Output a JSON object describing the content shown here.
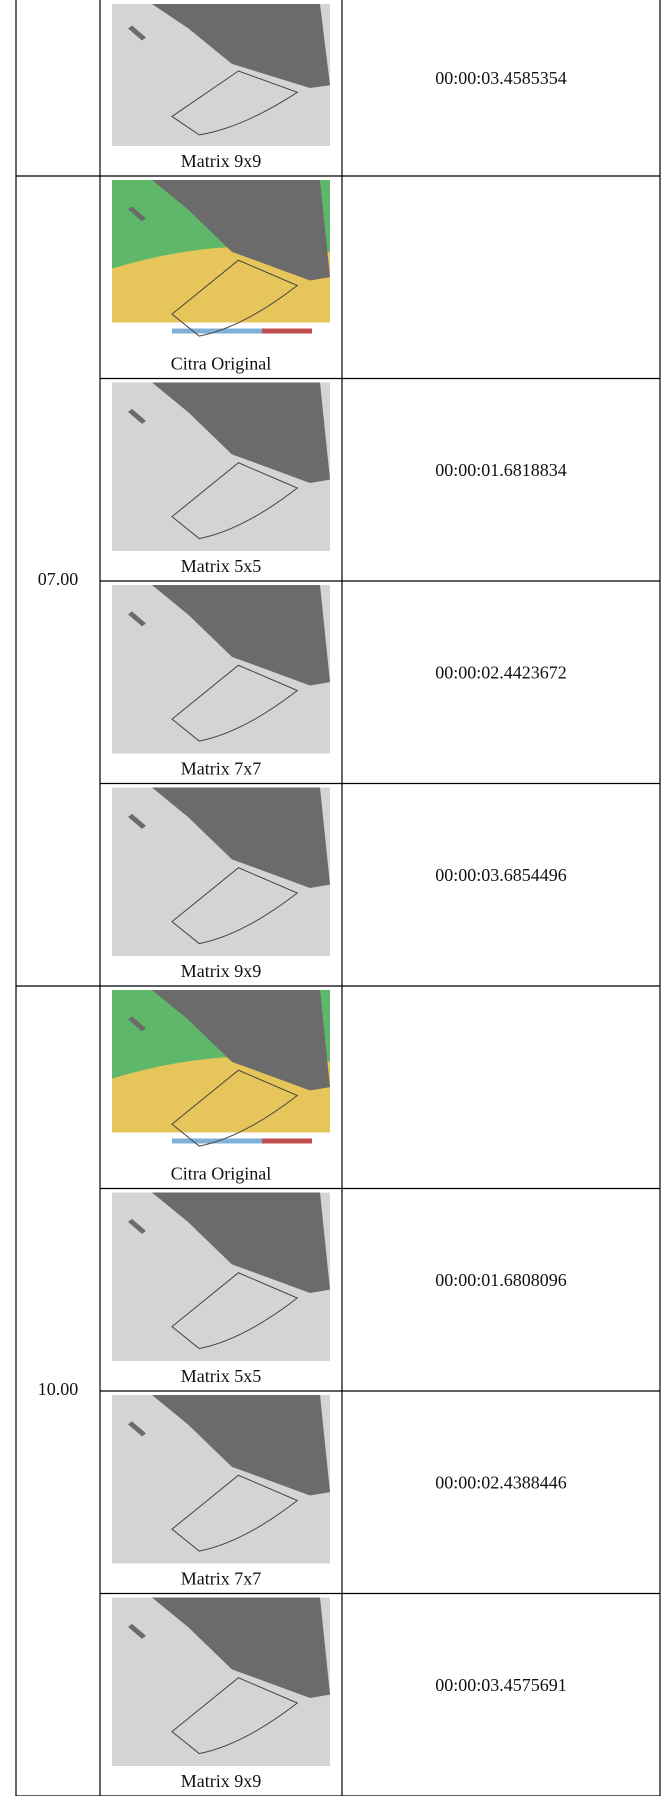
{
  "table": {
    "lead_row": {
      "caption": "Matrix 9x9",
      "duration": "00:00:03.4585354"
    },
    "groups": [
      {
        "time": "07.00",
        "rows": [
          {
            "caption": "Citra Original"
          },
          {
            "caption": "Matrix 5x5",
            "duration": "00:00:01.6818834"
          },
          {
            "caption": "Matrix 7x7",
            "duration": "00:00:02.4423672"
          },
          {
            "caption": "Matrix 9x9",
            "duration": "00:00:03.6854496"
          }
        ]
      },
      {
        "time": "10.00",
        "rows": [
          {
            "caption": "Citra Original"
          },
          {
            "caption": "Matrix 5x5",
            "duration": "00:00:01.6808096"
          },
          {
            "caption": "Matrix 7x7",
            "duration": "00:00:02.4388446"
          },
          {
            "caption": "Matrix 9x9",
            "duration": "00:00:03.4575691"
          }
        ]
      }
    ]
  }
}
